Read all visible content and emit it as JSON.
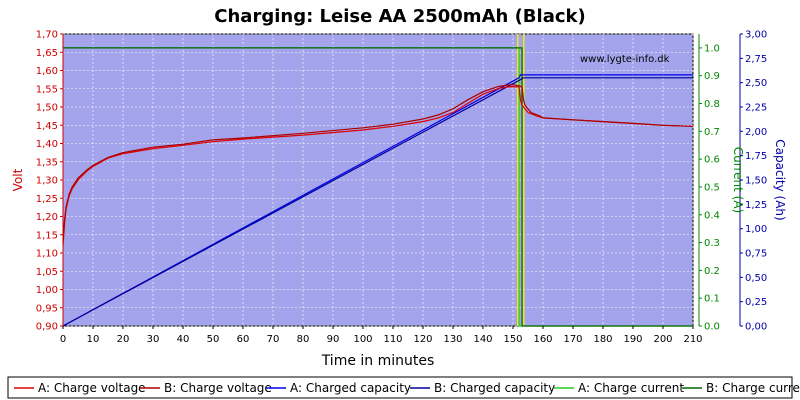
{
  "chart_data": {
    "type": "line",
    "title": "Charging: Leise AA 2500mAh (Black)",
    "xlabel": "Time in minutes",
    "ylabel_left": "Volt",
    "ylabel_right1": "Current (A)",
    "ylabel_right2": "Capacity (Ah)",
    "watermark": "www.lygte-info.dk",
    "x_ticks": [
      0,
      10,
      20,
      30,
      40,
      50,
      60,
      70,
      80,
      90,
      100,
      110,
      120,
      130,
      140,
      150,
      160,
      170,
      180,
      190,
      200,
      210
    ],
    "xlim": [
      0,
      210
    ],
    "ylim_left": [
      0.9,
      1.7
    ],
    "ylim_current": [
      0.0,
      1.05
    ],
    "ylim_capacity": [
      0.0,
      3.0
    ],
    "left_ticks": [
      "0,90",
      "0,95",
      "1,00",
      "1,05",
      "1,10",
      "1,15",
      "1,20",
      "1,25",
      "1,30",
      "1,35",
      "1,40",
      "1,45",
      "1,50",
      "1,55",
      "1,60",
      "1,65",
      "1,70"
    ],
    "current_ticks": [
      "0.0",
      "0.1",
      "0.2",
      "0.3",
      "0.4",
      "0.5",
      "0.6",
      "0.7",
      "0.8",
      "0.9",
      "1.0"
    ],
    "capacity_ticks": [
      "0,00",
      "0,25",
      "0,50",
      "0,75",
      "1,00",
      "1,25",
      "1,50",
      "1,75",
      "2,00",
      "2,25",
      "2,50",
      "2,75",
      "3,00"
    ],
    "grid": true,
    "legend_position": "bottom",
    "colors": {
      "plot_bg": "#a4a4ec",
      "voltage_a": "#dd0000",
      "voltage_b": "#aa0000",
      "capacity_a": "#0000ee",
      "capacity_b": "#000099",
      "current_a": "#22cc22",
      "current_b": "#006600",
      "volt_axis": "#cc0000",
      "current_axis": "#008800",
      "capacity_axis": "#0000aa",
      "highlight": "#eeee00"
    },
    "series": [
      {
        "name": "A: Charge voltage",
        "axis": "volt",
        "x": [
          0,
          0.5,
          1,
          2,
          3,
          5,
          8,
          10,
          15,
          20,
          30,
          40,
          50,
          60,
          80,
          100,
          110,
          120,
          125,
          130,
          135,
          140,
          145,
          148,
          150,
          152,
          152.5,
          153,
          155,
          158,
          160,
          170,
          180,
          190,
          200,
          210
        ],
        "y": [
          1.12,
          1.18,
          1.22,
          1.255,
          1.275,
          1.3,
          1.325,
          1.337,
          1.36,
          1.372,
          1.386,
          1.395,
          1.405,
          1.412,
          1.423,
          1.437,
          1.447,
          1.46,
          1.47,
          1.485,
          1.51,
          1.535,
          1.55,
          1.555,
          1.556,
          1.555,
          1.52,
          1.505,
          1.485,
          1.475,
          1.47,
          1.465,
          1.46,
          1.455,
          1.45,
          1.447
        ]
      },
      {
        "name": "B: Charge voltage",
        "axis": "volt",
        "x": [
          0,
          0.5,
          1,
          2,
          3,
          5,
          8,
          10,
          15,
          20,
          30,
          40,
          50,
          60,
          80,
          100,
          110,
          120,
          125,
          130,
          135,
          140,
          145,
          148,
          150,
          152,
          153,
          153.5,
          154,
          156,
          159,
          160,
          170,
          180,
          190,
          200,
          210
        ],
        "y": [
          1.13,
          1.19,
          1.225,
          1.26,
          1.28,
          1.305,
          1.328,
          1.34,
          1.362,
          1.375,
          1.39,
          1.398,
          1.41,
          1.415,
          1.428,
          1.443,
          1.453,
          1.467,
          1.478,
          1.495,
          1.52,
          1.542,
          1.556,
          1.56,
          1.561,
          1.558,
          1.555,
          1.52,
          1.505,
          1.485,
          1.475,
          1.47,
          1.465,
          1.46,
          1.455,
          1.45,
          1.447
        ]
      },
      {
        "name": "A: Charged capacity",
        "axis": "capacity",
        "x": [
          0,
          152,
          152.5,
          210
        ],
        "y": [
          0,
          2.55,
          2.58,
          2.58
        ]
      },
      {
        "name": "B: Charged capacity",
        "axis": "capacity",
        "x": [
          0,
          153,
          153.5,
          210
        ],
        "y": [
          0,
          2.54,
          2.55,
          2.55
        ]
      },
      {
        "name": "A: Charge current",
        "axis": "current",
        "x": [
          0,
          152,
          152,
          152.3,
          152.3,
          210
        ],
        "y": [
          1.0,
          1.0,
          0.0,
          0.0,
          0.0,
          0.0
        ]
      },
      {
        "name": "B: Charge current",
        "axis": "current",
        "x": [
          0,
          153,
          153,
          153.3,
          153.3,
          210
        ],
        "y": [
          1.0,
          1.0,
          0.0,
          0.0,
          0.0,
          0.0
        ]
      }
    ]
  }
}
